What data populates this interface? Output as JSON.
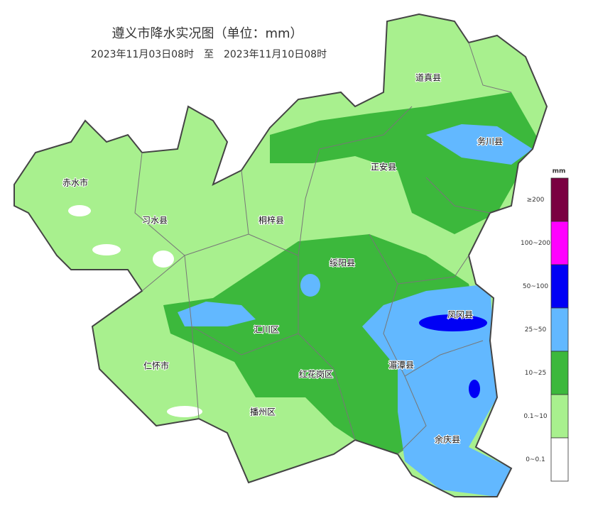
{
  "header": {
    "title": "遵义市降水实况图（单位：mm）",
    "subtitle": "2023年11月03日08时　至　2023年11月10日08时"
  },
  "regions": [
    "道真县",
    "务川县",
    "正安县",
    "赤水市",
    "习水县",
    "桐梓县",
    "绥阳县",
    "凤冈县",
    "汇川区",
    "湄潭县",
    "仁怀市",
    "红花岗区",
    "播州区",
    "余庆县"
  ],
  "legend": {
    "unit": "mm",
    "items": [
      {
        "label": "≥200",
        "color": "#7a0041"
      },
      {
        "label": "100~200",
        "color": "#ff00ff"
      },
      {
        "label": "50~100",
        "color": "#0000f5"
      },
      {
        "label": "25~50",
        "color": "#62b8ff"
      },
      {
        "label": "10~25",
        "color": "#3cb83c"
      },
      {
        "label": "0.1~10",
        "color": "#a8f08e"
      },
      {
        "label": "0~0.1",
        "color": "#ffffff"
      }
    ]
  }
}
